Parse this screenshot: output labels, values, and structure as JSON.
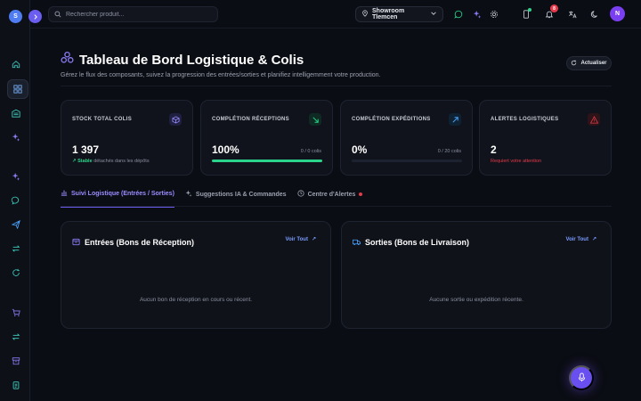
{
  "sidebar": {
    "avatar_initial": "S",
    "collapse_icon": "chevron-right-icon",
    "items": [
      {
        "icon": "home-icon"
      },
      {
        "icon": "dashboard-icon",
        "active": true
      },
      {
        "icon": "warehouse-icon"
      },
      {
        "icon": "sparkles-icon"
      },
      {
        "icon": "sparkles-icon"
      },
      {
        "icon": "chat-icon"
      },
      {
        "icon": "send-icon"
      },
      {
        "icon": "transfer-icon"
      },
      {
        "icon": "refresh-icon"
      },
      {
        "icon": "cart-icon"
      },
      {
        "icon": "transfer-icon"
      },
      {
        "icon": "archive-icon"
      },
      {
        "icon": "clipboard-icon"
      }
    ]
  },
  "topbar": {
    "search_placeholder": "Rechercher produit...",
    "showroom": "Showroom Tlemcen",
    "notifications_count": "8",
    "user_initial": "N"
  },
  "header": {
    "title": "Tableau de Bord Logistique & Colis",
    "subtitle": "Gérez le flux des composants, suivez la progression des entrées/sorties et planifiez intelligemment votre production.",
    "refresh_label": "Actualiser"
  },
  "cards": {
    "stock": {
      "label": "STOCK TOTAL COLIS",
      "value": "1 397",
      "stable": "Stable",
      "sub": "détachés dans les dépôts"
    },
    "receptions": {
      "label": "COMPLÉTION RÉCEPTIONS",
      "value": "100%",
      "count": "0 / 0 colis",
      "progress": 1.0
    },
    "expeditions": {
      "label": "COMPLÉTION EXPÉDITIONS",
      "value": "0%",
      "count": "0 / 20 colis",
      "progress": 0.0
    },
    "alerts": {
      "label": "ALERTES LOGISTIQUES",
      "value": "2",
      "sub": "Requiert votre attention"
    }
  },
  "tabs": [
    {
      "label": "Suivi Logistique (Entrées / Sorties)",
      "active": true
    },
    {
      "label": "Suggestions IA & Commandes"
    },
    {
      "label": "Centre d'Alertes"
    }
  ],
  "panels": {
    "entrees": {
      "title": "Entrées (Bons de Réception)",
      "see_all": "Voir Tout",
      "empty": "Aucun bon de réception en cours ou récent."
    },
    "sorties": {
      "title": "Sorties (Bons de Livraison)",
      "see_all": "Voir Tout",
      "empty": "Aucune sortie ou expédition récente."
    }
  },
  "colors": {
    "accent": "#6a5df0",
    "success": "#2ad48b",
    "danger": "#e43a4a",
    "background": "#0b0d14"
  }
}
